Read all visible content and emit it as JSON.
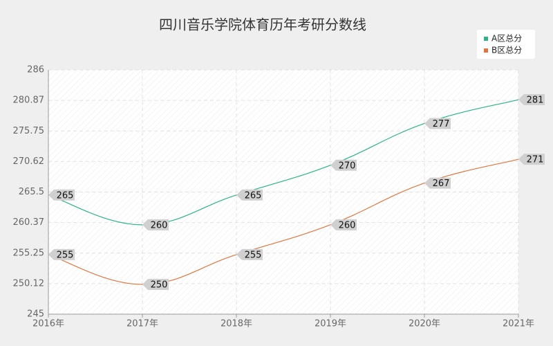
{
  "chart_data": {
    "type": "line",
    "title": "四川音乐学院体育历年考研分数线",
    "categories": [
      "2016年",
      "2017年",
      "2018年",
      "2019年",
      "2020年",
      "2021年"
    ],
    "series": [
      {
        "name": "A区总分",
        "color": "#2bb38a",
        "values": [
          265,
          260,
          265,
          270,
          277,
          281
        ]
      },
      {
        "name": "B区总分",
        "color": "#e0763f",
        "values": [
          255,
          250,
          255,
          260,
          267,
          271
        ]
      }
    ],
    "ylim": [
      245,
      286
    ],
    "yticks": [
      245,
      250.12,
      255.25,
      260.37,
      265.5,
      270.62,
      275.75,
      280.87,
      286
    ],
    "grid": true,
    "legend": "top-right"
  }
}
